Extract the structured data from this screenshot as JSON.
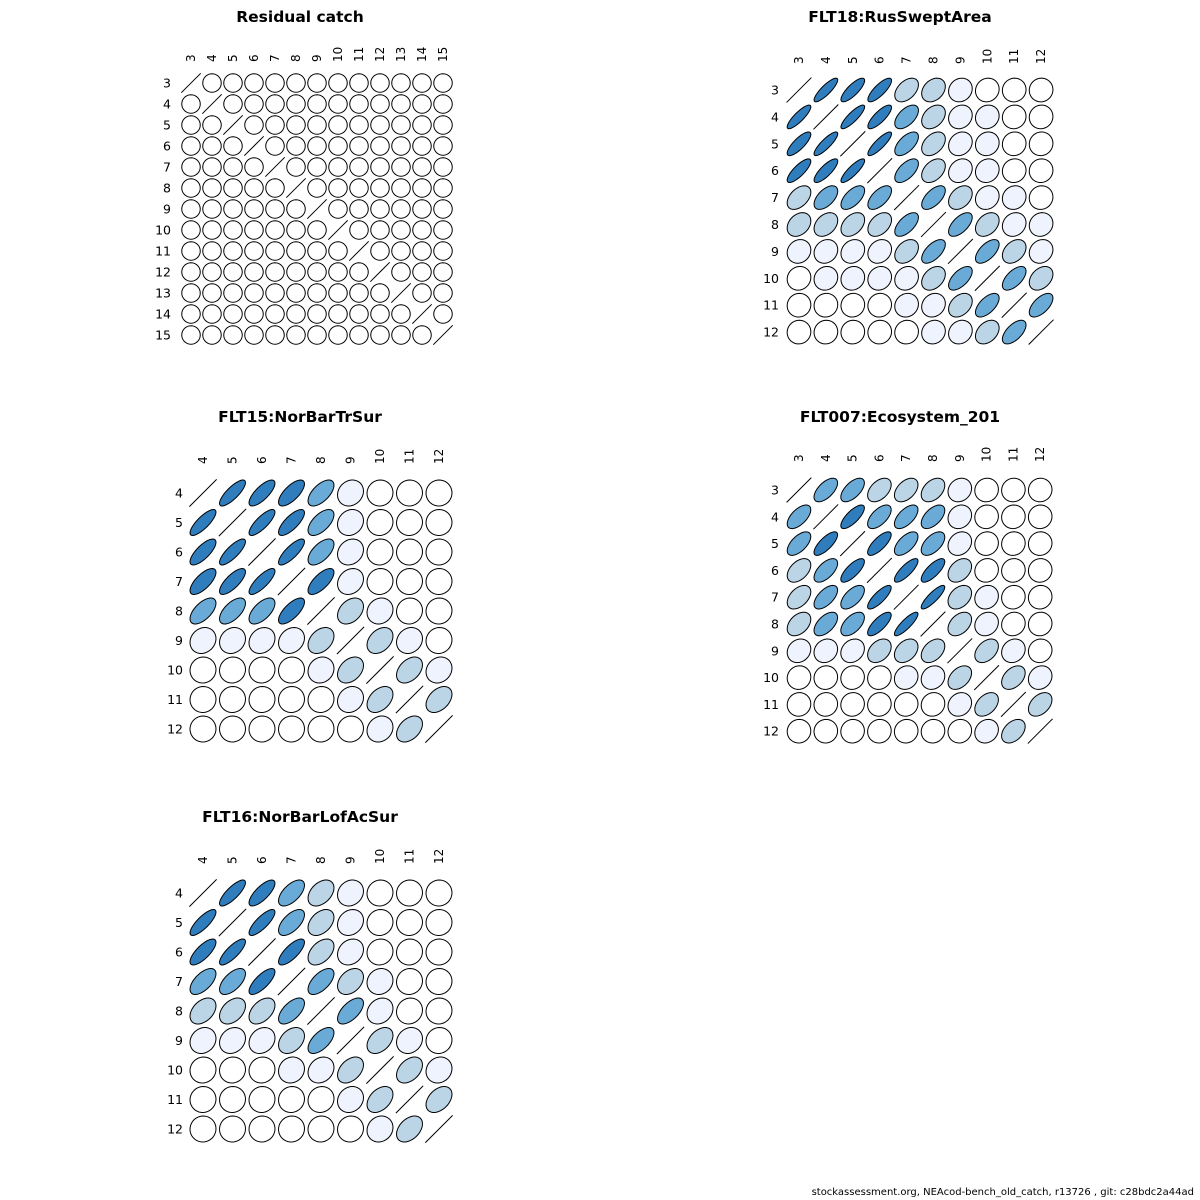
{
  "footer": "stockassessment.org, NEAcod-bench_old_catch, r13726 , git: c28bdc2a44ad",
  "colors": {
    "r0": "#ffffff",
    "r1": "#eef3fd",
    "r2": "#bcd5e6",
    "r3": "#6aaad6",
    "r4": "#2f7dbd",
    "stroke": "#000000"
  },
  "chart_data": [
    {
      "type": "heatmap",
      "title": "Residual catch",
      "labels": [
        "3",
        "4",
        "5",
        "6",
        "7",
        "8",
        "9",
        "10",
        "11",
        "12",
        "13",
        "14",
        "15"
      ],
      "matrix": [
        [
          1,
          0,
          0,
          0,
          0,
          0,
          0,
          0,
          0,
          0,
          0,
          0,
          0
        ],
        [
          0,
          1,
          0,
          0,
          0,
          0,
          0,
          0,
          0,
          0,
          0,
          0,
          0
        ],
        [
          0,
          0,
          1,
          0,
          0,
          0,
          0,
          0,
          0,
          0,
          0,
          0,
          0
        ],
        [
          0,
          0,
          0,
          1,
          0,
          0,
          0,
          0,
          0,
          0,
          0,
          0,
          0
        ],
        [
          0,
          0,
          0,
          0,
          1,
          0,
          0,
          0,
          0,
          0,
          0,
          0,
          0
        ],
        [
          0,
          0,
          0,
          0,
          0,
          1,
          0,
          0,
          0,
          0,
          0,
          0,
          0
        ],
        [
          0,
          0,
          0,
          0,
          0,
          0,
          1,
          0,
          0,
          0,
          0,
          0,
          0
        ],
        [
          0,
          0,
          0,
          0,
          0,
          0,
          0,
          1,
          0,
          0,
          0,
          0,
          0
        ],
        [
          0,
          0,
          0,
          0,
          0,
          0,
          0,
          0,
          1,
          0,
          0,
          0,
          0
        ],
        [
          0,
          0,
          0,
          0,
          0,
          0,
          0,
          0,
          0,
          1,
          0,
          0,
          0
        ],
        [
          0,
          0,
          0,
          0,
          0,
          0,
          0,
          0,
          0,
          0,
          1,
          0,
          0
        ],
        [
          0,
          0,
          0,
          0,
          0,
          0,
          0,
          0,
          0,
          0,
          0,
          1,
          0
        ],
        [
          0,
          0,
          0,
          0,
          0,
          0,
          0,
          0,
          0,
          0,
          0,
          0,
          1
        ]
      ]
    },
    {
      "type": "heatmap",
      "title": "FLT18:RusSweptArea",
      "labels": [
        "3",
        "4",
        "5",
        "6",
        "7",
        "8",
        "9",
        "10",
        "11",
        "12"
      ],
      "matrix": [
        [
          1,
          0.85,
          0.8,
          0.8,
          0.45,
          0.3,
          0.12,
          0.08,
          0.04,
          0.03
        ],
        [
          0.85,
          1,
          0.85,
          0.8,
          0.55,
          0.35,
          0.15,
          0.1,
          0.05,
          0.04
        ],
        [
          0.8,
          0.85,
          1,
          0.85,
          0.6,
          0.4,
          0.18,
          0.1,
          0.05,
          0.04
        ],
        [
          0.8,
          0.8,
          0.85,
          1,
          0.6,
          0.4,
          0.2,
          0.12,
          0.05,
          0.04
        ],
        [
          0.45,
          0.55,
          0.6,
          0.6,
          1,
          0.6,
          0.35,
          0.15,
          0.1,
          0.05
        ],
        [
          0.3,
          0.35,
          0.4,
          0.4,
          0.6,
          1,
          0.6,
          0.35,
          0.15,
          0.1
        ],
        [
          0.12,
          0.15,
          0.18,
          0.2,
          0.35,
          0.6,
          1,
          0.6,
          0.35,
          0.15
        ],
        [
          0.08,
          0.1,
          0.1,
          0.12,
          0.15,
          0.35,
          0.6,
          1,
          0.6,
          0.35
        ],
        [
          0.04,
          0.05,
          0.05,
          0.05,
          0.1,
          0.15,
          0.35,
          0.6,
          1,
          0.6
        ],
        [
          0.03,
          0.04,
          0.04,
          0.04,
          0.05,
          0.1,
          0.15,
          0.35,
          0.6,
          1
        ]
      ]
    },
    {
      "type": "heatmap",
      "title": "FLT15:NorBarTrSur",
      "labels": [
        "4",
        "5",
        "6",
        "7",
        "8",
        "9",
        "10",
        "11",
        "12"
      ],
      "matrix": [
        [
          1,
          0.8,
          0.75,
          0.7,
          0.6,
          0.15,
          0.03,
          0.02,
          0.01
        ],
        [
          0.8,
          1,
          0.8,
          0.75,
          0.6,
          0.15,
          0.05,
          0.03,
          0.01
        ],
        [
          0.75,
          0.8,
          1,
          0.8,
          0.6,
          0.18,
          0.05,
          0.03,
          0.02
        ],
        [
          0.7,
          0.75,
          0.8,
          1,
          0.7,
          0.2,
          0.05,
          0.03,
          0.02
        ],
        [
          0.6,
          0.6,
          0.6,
          0.7,
          1,
          0.35,
          0.12,
          0.05,
          0.03
        ],
        [
          0.15,
          0.15,
          0.18,
          0.2,
          0.35,
          1,
          0.35,
          0.15,
          0.05
        ],
        [
          0.03,
          0.05,
          0.05,
          0.05,
          0.12,
          0.35,
          1,
          0.4,
          0.15
        ],
        [
          0.02,
          0.03,
          0.03,
          0.03,
          0.05,
          0.15,
          0.4,
          1,
          0.4
        ],
        [
          0.01,
          0.01,
          0.02,
          0.02,
          0.03,
          0.05,
          0.15,
          0.4,
          1
        ]
      ]
    },
    {
      "type": "heatmap",
      "title": "FLT007:Ecosystem_201",
      "labels": [
        "3",
        "4",
        "5",
        "6",
        "7",
        "8",
        "9",
        "10",
        "11",
        "12"
      ],
      "matrix": [
        [
          1,
          0.6,
          0.6,
          0.45,
          0.45,
          0.4,
          0.15,
          0.05,
          0.04,
          0.03
        ],
        [
          0.6,
          1,
          0.75,
          0.6,
          0.6,
          0.55,
          0.15,
          0.05,
          0.04,
          0.03
        ],
        [
          0.6,
          0.75,
          1,
          0.75,
          0.6,
          0.55,
          0.2,
          0.06,
          0.05,
          0.04
        ],
        [
          0.45,
          0.6,
          0.75,
          1,
          0.8,
          0.75,
          0.35,
          0.08,
          0.05,
          0.04
        ],
        [
          0.45,
          0.6,
          0.6,
          0.8,
          1,
          0.85,
          0.35,
          0.12,
          0.06,
          0.05
        ],
        [
          0.4,
          0.55,
          0.55,
          0.75,
          0.85,
          1,
          0.4,
          0.15,
          0.08,
          0.05
        ],
        [
          0.15,
          0.15,
          0.2,
          0.35,
          0.35,
          0.4,
          1,
          0.4,
          0.15,
          0.06
        ],
        [
          0.05,
          0.05,
          0.06,
          0.08,
          0.12,
          0.15,
          0.4,
          1,
          0.4,
          0.15
        ],
        [
          0.04,
          0.04,
          0.05,
          0.05,
          0.06,
          0.08,
          0.15,
          0.4,
          1,
          0.4
        ],
        [
          0.03,
          0.03,
          0.04,
          0.04,
          0.05,
          0.05,
          0.06,
          0.15,
          0.4,
          1
        ]
      ]
    },
    {
      "type": "heatmap",
      "title": "FLT16:NorBarLofAcSur",
      "labels": [
        "4",
        "5",
        "6",
        "7",
        "8",
        "9",
        "10",
        "11",
        "12"
      ],
      "matrix": [
        [
          1,
          0.8,
          0.75,
          0.6,
          0.4,
          0.15,
          0.05,
          0.03,
          0.02
        ],
        [
          0.8,
          1,
          0.8,
          0.6,
          0.4,
          0.18,
          0.05,
          0.03,
          0.02
        ],
        [
          0.75,
          0.8,
          1,
          0.75,
          0.45,
          0.2,
          0.06,
          0.04,
          0.02
        ],
        [
          0.6,
          0.6,
          0.75,
          1,
          0.6,
          0.35,
          0.1,
          0.05,
          0.03
        ],
        [
          0.4,
          0.4,
          0.45,
          0.6,
          1,
          0.6,
          0.2,
          0.08,
          0.04
        ],
        [
          0.15,
          0.18,
          0.2,
          0.35,
          0.6,
          1,
          0.4,
          0.15,
          0.05
        ],
        [
          0.05,
          0.05,
          0.06,
          0.1,
          0.2,
          0.4,
          1,
          0.4,
          0.12
        ],
        [
          0.03,
          0.03,
          0.04,
          0.05,
          0.08,
          0.15,
          0.4,
          1,
          0.4
        ],
        [
          0.02,
          0.02,
          0.02,
          0.03,
          0.04,
          0.05,
          0.12,
          0.4,
          1
        ]
      ]
    }
  ]
}
